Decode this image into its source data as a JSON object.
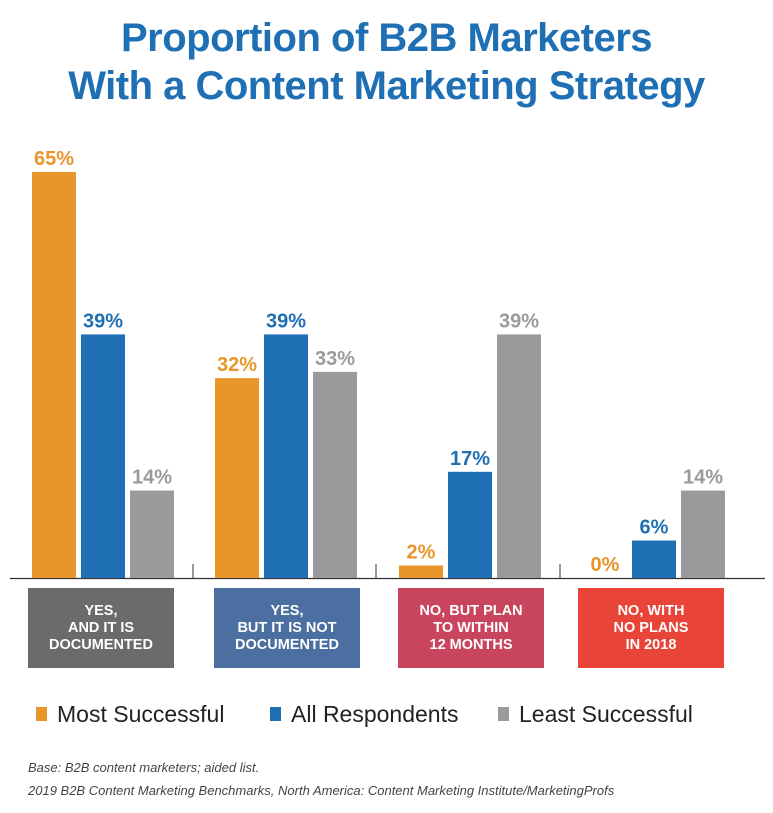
{
  "title": {
    "line1": "Proportion of B2B Marketers",
    "line2": "With a Content Marketing Strategy"
  },
  "colors": {
    "title": "#1f6fb5",
    "most_successful": "#e8952a",
    "all_respondents": "#1f6fb5",
    "least_successful": "#9a9a9c",
    "category_boxes": [
      "#6b6b6b",
      "#4a6fa0",
      "#c9455e",
      "#e84437"
    ]
  },
  "chart_data": {
    "type": "bar",
    "categories": [
      [
        "YES,",
        "AND IT IS",
        "DOCUMENTED"
      ],
      [
        "YES,",
        "BUT IT IS NOT",
        "DOCUMENTED"
      ],
      [
        "NO, BUT PLAN",
        "TO WITHIN",
        "12 MONTHS"
      ],
      [
        "NO, WITH",
        "NO PLANS",
        "IN 2018"
      ]
    ],
    "series": [
      {
        "name": "Most Successful",
        "values": [
          65,
          32,
          2,
          0
        ]
      },
      {
        "name": "All Respondents",
        "values": [
          39,
          39,
          17,
          6
        ]
      },
      {
        "name": "Least Successful",
        "values": [
          14,
          33,
          39,
          14
        ]
      }
    ],
    "value_suffix": "%",
    "ylim": [
      0,
      65
    ],
    "grid": false,
    "legend_position": "bottom"
  },
  "notes": {
    "base": "Base: B2B content marketers; aided list.",
    "source": "2019 B2B Content Marketing Benchmarks, North America: Content Marketing Institute/MarketingProfs"
  }
}
